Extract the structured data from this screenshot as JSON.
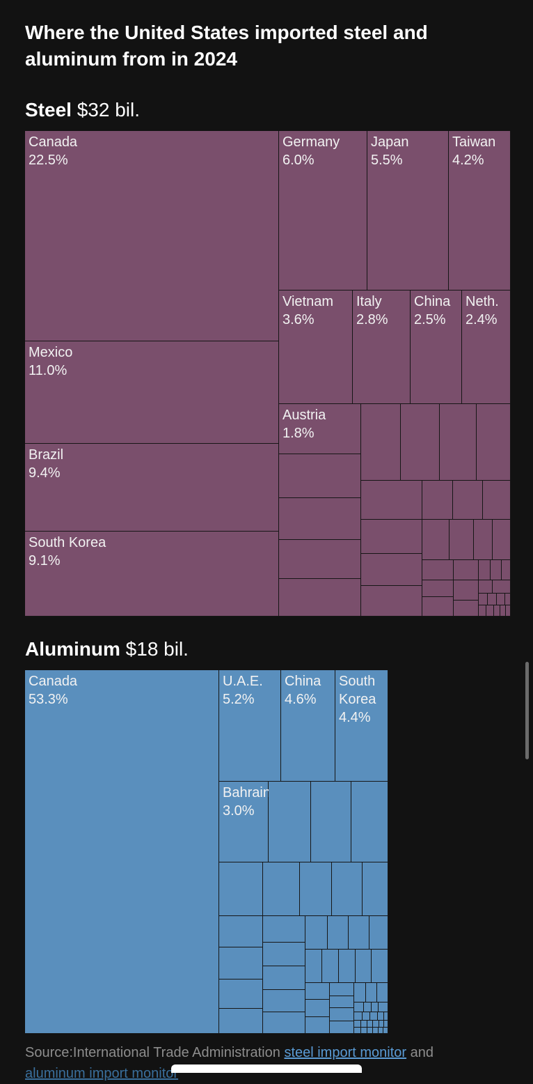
{
  "title": "Where the United States imported steel and aluminum from in 2024",
  "steel_header": {
    "bold": "Steel",
    "value": "$32 bil."
  },
  "aluminum_header": {
    "bold": "Aluminum",
    "value": "$18 bil."
  },
  "source": {
    "prefix": "Source:International Trade Administration ",
    "link1": "steel import monitor",
    "mid": " and",
    "line2": "aluminum import monitor"
  },
  "colors": {
    "steel": "#7a4f6c",
    "aluminum": "#5a8fbd",
    "background": "#121212"
  },
  "chart_data": [
    {
      "type": "treemap",
      "title": "Steel",
      "total": "$32 bil.",
      "labeled": [
        {
          "name": "Canada",
          "pct": "22.5%",
          "value": 22.5
        },
        {
          "name": "Mexico",
          "pct": "11.0%",
          "value": 11.0
        },
        {
          "name": "Brazil",
          "pct": "9.4%",
          "value": 9.4
        },
        {
          "name": "South Korea",
          "pct": "9.1%",
          "value": 9.1
        },
        {
          "name": "Germany",
          "pct": "6.0%",
          "value": 6.0
        },
        {
          "name": "Japan",
          "pct": "5.5%",
          "value": 5.5
        },
        {
          "name": "Taiwan",
          "pct": "4.2%",
          "value": 4.2
        },
        {
          "name": "Vietnam",
          "pct": "3.6%",
          "value": 3.6
        },
        {
          "name": "Italy",
          "pct": "2.8%",
          "value": 2.8
        },
        {
          "name": "China",
          "pct": "2.5%",
          "value": 2.5
        },
        {
          "name": "Neth.",
          "pct": "2.4%",
          "value": 2.4
        },
        {
          "name": "Austria",
          "pct": "1.8%",
          "value": 1.8
        }
      ]
    },
    {
      "type": "treemap",
      "title": "Aluminum",
      "total": "$18 bil.",
      "labeled": [
        {
          "name": "Canada",
          "pct": "53.3%",
          "value": 53.3
        },
        {
          "name": "U.A.E.",
          "pct": "5.2%",
          "value": 5.2
        },
        {
          "name": "China",
          "pct": "4.6%",
          "value": 4.6
        },
        {
          "name": "South Korea",
          "pct": "4.4%",
          "value": 4.4
        },
        {
          "name": "Bahrain",
          "pct": "3.0%",
          "value": 3.0
        }
      ]
    }
  ]
}
